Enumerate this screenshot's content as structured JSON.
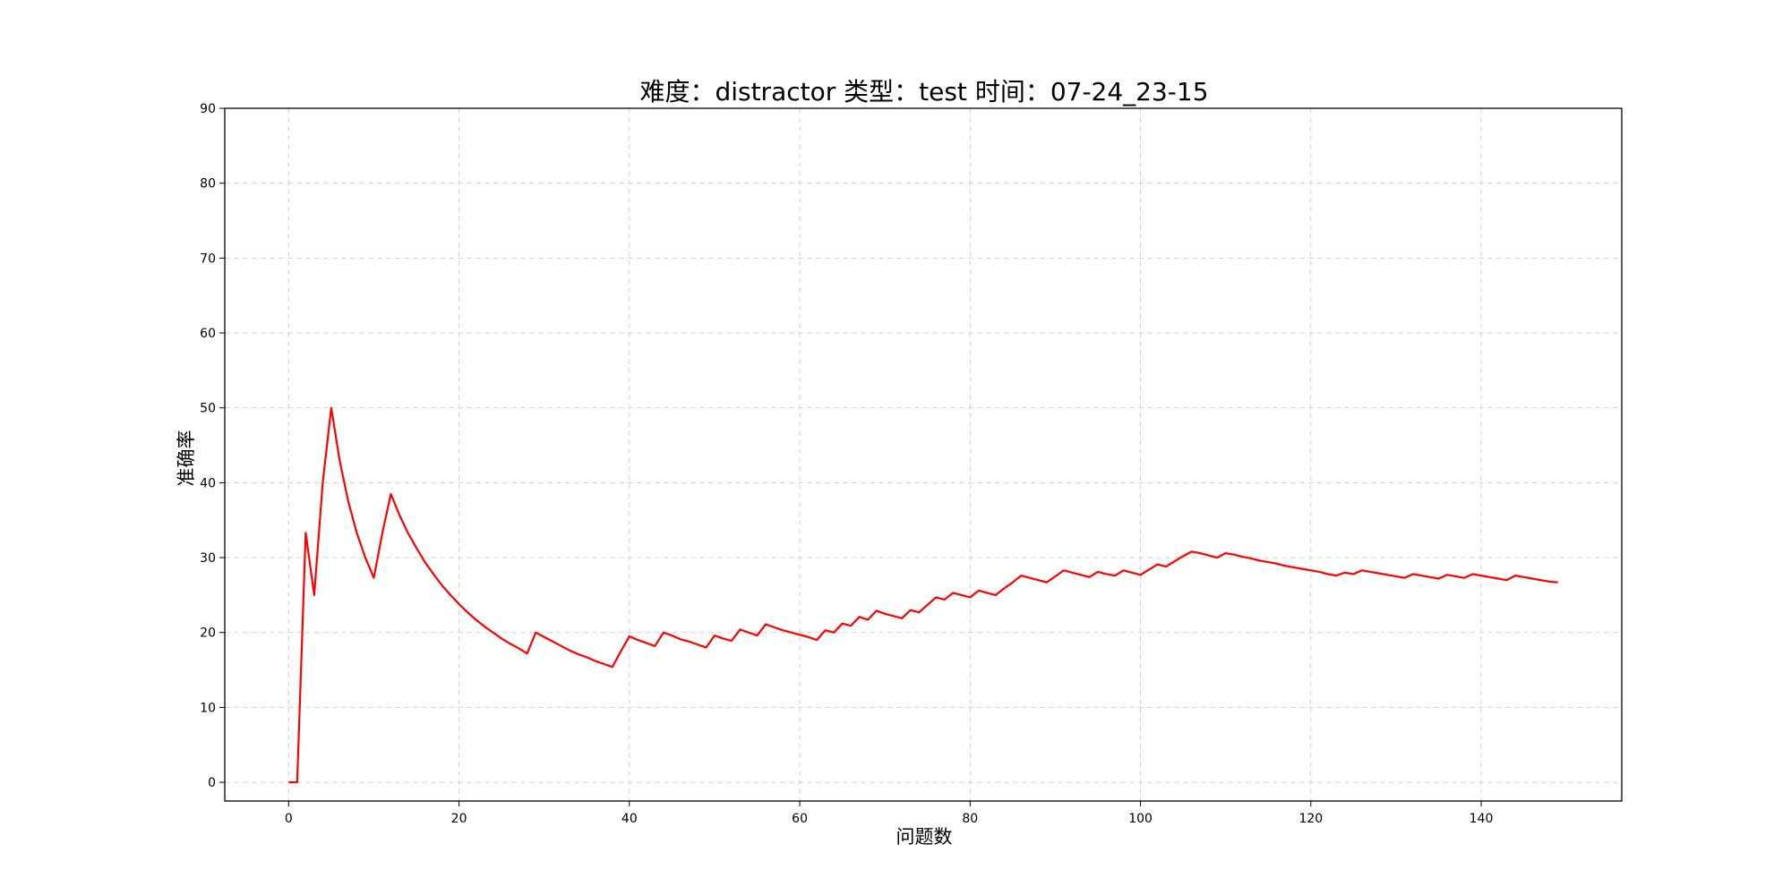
{
  "chart_data": {
    "type": "line",
    "title": "难度：distractor 类型：test 时间：07-24_23-15",
    "xlabel": "问题数",
    "ylabel": "准确率",
    "xlim": [
      -7.5,
      156.5
    ],
    "ylim": [
      -2.5,
      90
    ],
    "xticks": [
      "0",
      "20",
      "40",
      "60",
      "80",
      "100",
      "120",
      "140"
    ],
    "yticks": [
      "0",
      "10",
      "20",
      "30",
      "40",
      "50",
      "60",
      "70",
      "80",
      "90"
    ],
    "grid": true,
    "legend": "none",
    "series": [
      {
        "color": "#ff0000",
        "points": [
          [
            0,
            0
          ],
          [
            1,
            0
          ],
          [
            2,
            33.3
          ],
          [
            3,
            25.0
          ],
          [
            4,
            40.0
          ],
          [
            5,
            50.0
          ],
          [
            6,
            42.9
          ],
          [
            7,
            37.5
          ],
          [
            8,
            33.3
          ],
          [
            9,
            30.0
          ],
          [
            10,
            27.3
          ],
          [
            11,
            33.3
          ],
          [
            12,
            38.5
          ],
          [
            13,
            35.7
          ],
          [
            14,
            33.3
          ],
          [
            15,
            31.3
          ],
          [
            16,
            29.4
          ],
          [
            17,
            27.8
          ],
          [
            18,
            26.3
          ],
          [
            19,
            25.0
          ],
          [
            20,
            23.8
          ],
          [
            21,
            22.7
          ],
          [
            22,
            21.7
          ],
          [
            23,
            20.8
          ],
          [
            24,
            20.0
          ],
          [
            25,
            19.2
          ],
          [
            26,
            18.5
          ],
          [
            27,
            17.9
          ],
          [
            28,
            17.2
          ],
          [
            29,
            20.0
          ],
          [
            30,
            19.4
          ],
          [
            31,
            18.8
          ],
          [
            32,
            18.2
          ],
          [
            33,
            17.6
          ],
          [
            34,
            17.1
          ],
          [
            35,
            16.7
          ],
          [
            36,
            16.2
          ],
          [
            37,
            15.8
          ],
          [
            38,
            15.4
          ],
          [
            39,
            17.5
          ],
          [
            40,
            19.5
          ],
          [
            41,
            19.0
          ],
          [
            42,
            18.6
          ],
          [
            43,
            18.2
          ],
          [
            44,
            20.0
          ],
          [
            45,
            19.6
          ],
          [
            46,
            19.1
          ],
          [
            47,
            18.8
          ],
          [
            48,
            18.4
          ],
          [
            49,
            18.0
          ],
          [
            50,
            19.6
          ],
          [
            51,
            19.2
          ],
          [
            52,
            18.9
          ],
          [
            53,
            20.4
          ],
          [
            54,
            20.0
          ],
          [
            55,
            19.6
          ],
          [
            56,
            21.1
          ],
          [
            57,
            20.7
          ],
          [
            58,
            20.3
          ],
          [
            59,
            20.0
          ],
          [
            60,
            19.7
          ],
          [
            61,
            19.4
          ],
          [
            62,
            19.0
          ],
          [
            63,
            20.3
          ],
          [
            64,
            20.0
          ],
          [
            65,
            21.2
          ],
          [
            66,
            20.9
          ],
          [
            67,
            22.1
          ],
          [
            68,
            21.7
          ],
          [
            69,
            22.9
          ],
          [
            70,
            22.5
          ],
          [
            71,
            22.2
          ],
          [
            72,
            21.9
          ],
          [
            73,
            23.0
          ],
          [
            74,
            22.7
          ],
          [
            75,
            23.7
          ],
          [
            76,
            24.7
          ],
          [
            77,
            24.4
          ],
          [
            78,
            25.3
          ],
          [
            79,
            25.0
          ],
          [
            80,
            24.7
          ],
          [
            81,
            25.6
          ],
          [
            82,
            25.3
          ],
          [
            83,
            25.0
          ],
          [
            84,
            25.9
          ],
          [
            85,
            26.7
          ],
          [
            86,
            27.6
          ],
          [
            87,
            27.3
          ],
          [
            88,
            27.0
          ],
          [
            89,
            26.7
          ],
          [
            90,
            27.5
          ],
          [
            91,
            28.3
          ],
          [
            92,
            28.0
          ],
          [
            93,
            27.7
          ],
          [
            94,
            27.4
          ],
          [
            95,
            28.1
          ],
          [
            96,
            27.8
          ],
          [
            97,
            27.6
          ],
          [
            98,
            28.3
          ],
          [
            99,
            28.0
          ],
          [
            100,
            27.7
          ],
          [
            101,
            28.4
          ],
          [
            102,
            29.1
          ],
          [
            103,
            28.8
          ],
          [
            104,
            29.5
          ],
          [
            105,
            30.2
          ],
          [
            106,
            30.8
          ],
          [
            107,
            30.6
          ],
          [
            108,
            30.3
          ],
          [
            109,
            30.0
          ],
          [
            110,
            30.6
          ],
          [
            111,
            30.4
          ],
          [
            112,
            30.1
          ],
          [
            113,
            29.9
          ],
          [
            114,
            29.6
          ],
          [
            115,
            29.4
          ],
          [
            116,
            29.2
          ],
          [
            117,
            28.9
          ],
          [
            118,
            28.7
          ],
          [
            119,
            28.5
          ],
          [
            120,
            28.3
          ],
          [
            121,
            28.1
          ],
          [
            122,
            27.8
          ],
          [
            123,
            27.6
          ],
          [
            124,
            28.0
          ],
          [
            125,
            27.8
          ],
          [
            126,
            28.3
          ],
          [
            127,
            28.1
          ],
          [
            128,
            27.9
          ],
          [
            129,
            27.7
          ],
          [
            130,
            27.5
          ],
          [
            131,
            27.3
          ],
          [
            132,
            27.8
          ],
          [
            133,
            27.6
          ],
          [
            134,
            27.4
          ],
          [
            135,
            27.2
          ],
          [
            136,
            27.7
          ],
          [
            137,
            27.5
          ],
          [
            138,
            27.3
          ],
          [
            139,
            27.8
          ],
          [
            140,
            27.6
          ],
          [
            141,
            27.4
          ],
          [
            142,
            27.2
          ],
          [
            143,
            27.0
          ],
          [
            144,
            27.6
          ],
          [
            145,
            27.4
          ],
          [
            146,
            27.2
          ],
          [
            147,
            27.0
          ],
          [
            148,
            26.8
          ],
          [
            149,
            26.7
          ]
        ]
      }
    ]
  }
}
